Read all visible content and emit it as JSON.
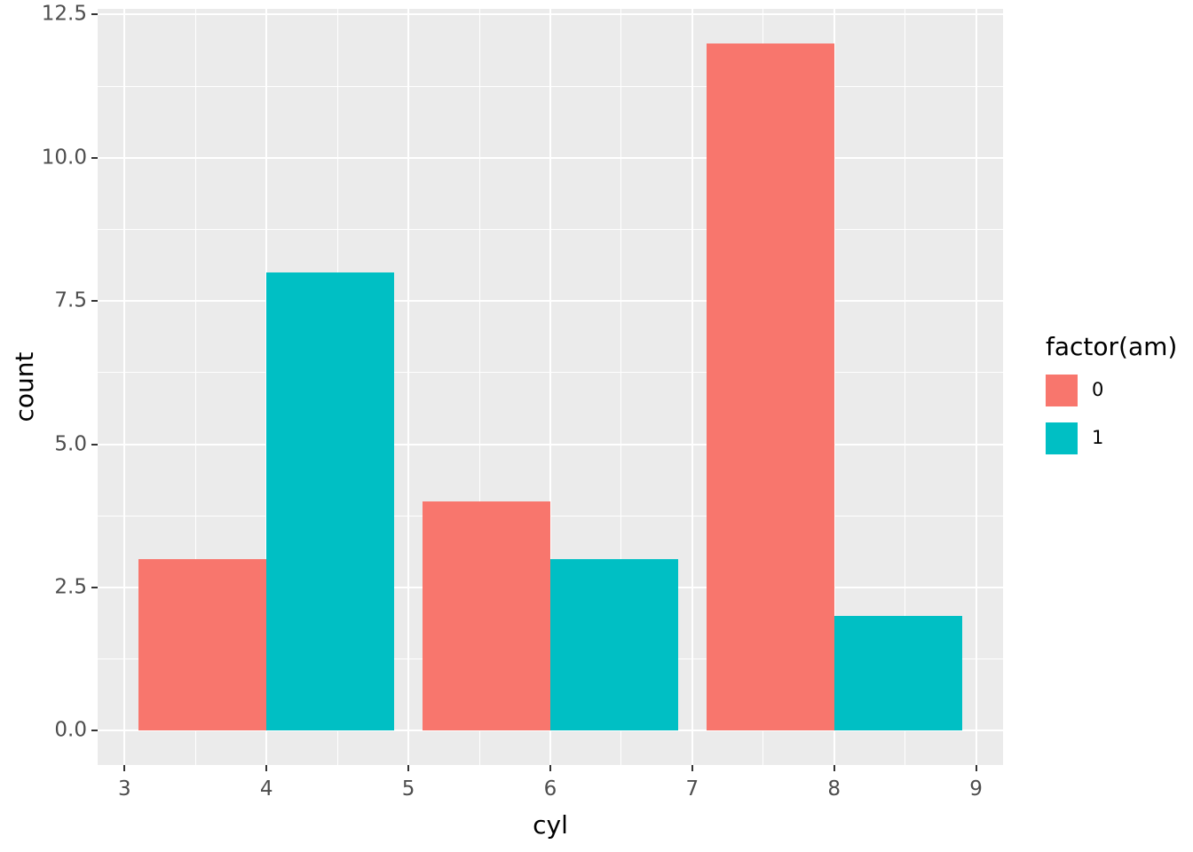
{
  "chart_data": {
    "type": "bar",
    "title": "",
    "xlabel": "cyl",
    "ylabel": "count",
    "categories": [
      4,
      6,
      8
    ],
    "series": [
      {
        "name": "0",
        "color": "#F8766D",
        "values": [
          3,
          4,
          12
        ]
      },
      {
        "name": "1",
        "color": "#00BFC4",
        "values": [
          8,
          3,
          2
        ]
      }
    ],
    "x_ticks": [
      "3",
      "4",
      "5",
      "6",
      "7",
      "8",
      "9"
    ],
    "y_ticks": [
      "0.0",
      "2.5",
      "5.0",
      "7.5",
      "10.0",
      "12.5"
    ],
    "x_range": [
      2.81,
      9.19
    ],
    "y_range": [
      -0.6,
      12.6
    ],
    "bar_width": 0.9,
    "grid": "on",
    "panel_background": "#EBEBEB",
    "grid_color": "#FFFFFF",
    "legend": {
      "position": "right",
      "title": "factor(am)",
      "entries": [
        {
          "label": "0",
          "color": "#F8766D"
        },
        {
          "label": "1",
          "color": "#00BFC4"
        }
      ]
    }
  }
}
